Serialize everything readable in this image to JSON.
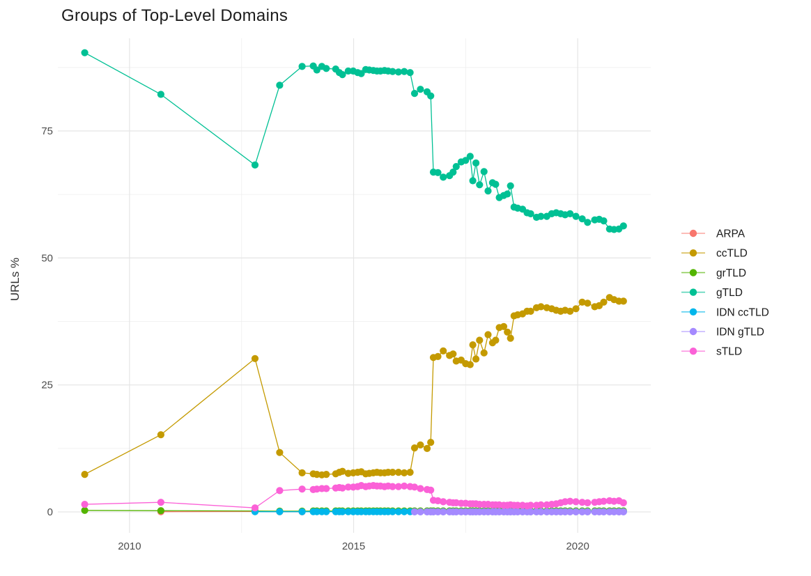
{
  "chart_data": {
    "type": "scatter-line",
    "title": "Groups of Top-Level Domains",
    "xlabel": "",
    "ylabel": "URLs %",
    "grid": "on",
    "legend_position": "right",
    "x_ticks": [
      2010,
      2015,
      2020
    ],
    "x_minor_ticks": [
      2012.5,
      2017.5
    ],
    "y_ticks": [
      0,
      25,
      50,
      75
    ],
    "y_minor_ticks": [
      12.5,
      37.5,
      62.5,
      87.5
    ],
    "xlim": [
      2008.4,
      2021.63
    ],
    "ylim": [
      -4.11,
      93.24
    ],
    "background_color": "#ffffff",
    "grid_color_major": "#e5e5e5",
    "grid_color_minor": "#f0f0f0",
    "x_full": [
      2009.0,
      2010.7,
      2012.8,
      2013.35,
      2013.85,
      2014.1,
      2014.18,
      2014.29,
      2014.39,
      2014.6,
      2014.68,
      2014.75,
      2014.88,
      2014.99,
      2015.09,
      2015.17,
      2015.27,
      2015.35,
      2015.44,
      2015.52,
      2015.6,
      2015.69,
      2015.77,
      2015.87,
      2016.0,
      2016.13,
      2016.26,
      2016.36,
      2016.49,
      2016.64,
      2016.72,
      2016.78,
      2016.88,
      2017.0,
      2017.14,
      2017.22,
      2017.29,
      2017.4,
      2017.5,
      2017.6,
      2017.66,
      2017.73,
      2017.81,
      2017.91,
      2018.0,
      2018.1,
      2018.17,
      2018.25,
      2018.35,
      2018.43,
      2018.5,
      2018.58,
      2018.66,
      2018.77,
      2018.87,
      2018.95,
      2019.08,
      2019.18,
      2019.31,
      2019.42,
      2019.52,
      2019.62,
      2019.72,
      2019.83,
      2019.96,
      2020.1,
      2020.22,
      2020.38,
      2020.48,
      2020.58,
      2020.71,
      2020.81,
      2020.92,
      2021.02
    ],
    "series": [
      {
        "name": "ARPA",
        "color": "#F8766D",
        "x_start": 1,
        "y": [
          0.05,
          0.08,
          0.05,
          0.03
        ]
      },
      {
        "name": "ccTLD",
        "color": "#C49A00",
        "x_start": 0,
        "y": [
          7.4,
          15.2,
          30.2,
          11.7,
          7.7,
          7.5,
          7.4,
          7.3,
          7.4,
          7.5,
          7.8,
          8.0,
          7.6,
          7.7,
          7.8,
          7.9,
          7.5,
          7.6,
          7.7,
          7.8,
          7.7,
          7.7,
          7.8,
          7.8,
          7.8,
          7.7,
          7.8,
          12.6,
          13.2,
          12.5,
          13.7,
          30.4,
          30.6,
          31.7,
          30.8,
          31.1,
          29.7,
          29.9,
          29.2,
          29.0,
          32.9,
          30.1,
          33.8,
          31.3,
          34.9,
          33.3,
          33.8,
          36.3,
          36.5,
          35.4,
          34.2,
          38.6,
          38.8,
          39.0,
          39.5,
          39.5,
          40.2,
          40.4,
          40.2,
          40.0,
          39.7,
          39.5,
          39.7,
          39.5,
          40.0,
          41.3,
          41.1,
          40.4,
          40.6,
          41.3,
          42.2,
          41.8,
          41.5,
          41.5
        ]
      },
      {
        "name": "grTLD",
        "color": "#53B400",
        "x_start": 0,
        "y": [
          0.3,
          0.25,
          0.2,
          0.15,
          0.15,
          0.2,
          0.2,
          0.2,
          0.2,
          0.2,
          0.2,
          0.2,
          0.2,
          0.2,
          0.2,
          0.2,
          0.2,
          0.2,
          0.2,
          0.2,
          0.2,
          0.2,
          0.2,
          0.2,
          0.2,
          0.2,
          0.2,
          0.2,
          0.2,
          0.2,
          0.2,
          0.2,
          0.2,
          0.2,
          0.2,
          0.2,
          0.2,
          0.2,
          0.2,
          0.2,
          0.2,
          0.2,
          0.2,
          0.2,
          0.2,
          0.2,
          0.2,
          0.2,
          0.2,
          0.2,
          0.2,
          0.2,
          0.2,
          0.2,
          0.2,
          0.2,
          0.2,
          0.2,
          0.2,
          0.2,
          0.2,
          0.2,
          0.2,
          0.2,
          0.2,
          0.2,
          0.2,
          0.2,
          0.2,
          0.2,
          0.2,
          0.2,
          0.2,
          0.2
        ]
      },
      {
        "name": "gTLD",
        "color": "#00C094",
        "x_start": 0,
        "y": [
          90.4,
          82.2,
          68.3,
          84.0,
          87.7,
          87.8,
          87.0,
          87.7,
          87.3,
          87.2,
          86.5,
          86.1,
          86.8,
          86.8,
          86.5,
          86.3,
          87.1,
          87.0,
          86.9,
          86.8,
          86.8,
          86.9,
          86.8,
          86.7,
          86.6,
          86.7,
          86.5,
          82.4,
          83.2,
          82.7,
          81.9,
          66.9,
          66.8,
          65.9,
          66.2,
          66.9,
          68.0,
          68.9,
          69.2,
          70.0,
          65.2,
          68.7,
          64.4,
          67.0,
          63.2,
          64.8,
          64.5,
          61.9,
          62.3,
          62.6,
          64.2,
          60.0,
          59.8,
          59.6,
          58.9,
          58.7,
          58.0,
          58.2,
          58.2,
          58.7,
          58.9,
          58.7,
          58.5,
          58.7,
          58.2,
          57.7,
          57.0,
          57.5,
          57.6,
          57.3,
          55.7,
          55.6,
          55.7,
          56.3
        ]
      },
      {
        "name": "IDN ccTLD",
        "color": "#00B6EB",
        "x_start": 2,
        "y": [
          0.05,
          0.05,
          0.05,
          0.05,
          0.05,
          0.05,
          0.05,
          0.05,
          0.05,
          0.05,
          0.05,
          0.05,
          0.05,
          0.05,
          0.05,
          0.05,
          0.05,
          0.05,
          0.05,
          0.05,
          0.05,
          0.05,
          0.05,
          0.05,
          0.05,
          0.05,
          0.05,
          0.05,
          0.05,
          0.05,
          0.05,
          0.05,
          0.05,
          0.05,
          0.05,
          0.05,
          0.05,
          0.05,
          0.05,
          0.05,
          0.05,
          0.05,
          0.05,
          0.05,
          0.05,
          0.05,
          0.05,
          0.05,
          0.05,
          0.05,
          0.05,
          0.05,
          0.05,
          0.05,
          0.05,
          0.05,
          0.05,
          0.05,
          0.05,
          0.05,
          0.05,
          0.05,
          0.05,
          0.05,
          0.05,
          0.05,
          0.05,
          0.05,
          0.05,
          0.05,
          0.05,
          0.05
        ]
      },
      {
        "name": "IDN gTLD",
        "color": "#A58AFF",
        "x_start": 27,
        "y": [
          0.02,
          0.02,
          0.02,
          0.02,
          0.02,
          0.02,
          0.02,
          0.02,
          0.02,
          0.02,
          0.02,
          0.02,
          0.02,
          0.02,
          0.02,
          0.02,
          0.02,
          0.02,
          0.02,
          0.02,
          0.02,
          0.02,
          0.02,
          0.02,
          0.02,
          0.02,
          0.02,
          0.02,
          0.02,
          0.02,
          0.02,
          0.02,
          0.02,
          0.02,
          0.02,
          0.02,
          0.02,
          0.02,
          0.02,
          0.02,
          0.02,
          0.02,
          0.02,
          0.02,
          0.02,
          0.02,
          0.02
        ]
      },
      {
        "name": "sTLD",
        "color": "#FB61D7",
        "x_start": 0,
        "y": [
          1.5,
          1.9,
          0.8,
          4.2,
          4.5,
          4.4,
          4.5,
          4.6,
          4.6,
          4.7,
          4.8,
          4.7,
          4.9,
          4.9,
          5.0,
          5.2,
          5.0,
          5.1,
          5.2,
          5.1,
          5.1,
          5.0,
          5.1,
          5.0,
          5.0,
          5.1,
          5.0,
          4.9,
          4.6,
          4.4,
          4.3,
          2.3,
          2.2,
          2.0,
          1.9,
          1.8,
          1.8,
          1.7,
          1.7,
          1.6,
          1.6,
          1.6,
          1.5,
          1.5,
          1.5,
          1.4,
          1.4,
          1.4,
          1.3,
          1.3,
          1.4,
          1.3,
          1.3,
          1.3,
          1.2,
          1.3,
          1.3,
          1.4,
          1.4,
          1.5,
          1.6,
          1.8,
          2.0,
          2.1,
          2.0,
          1.9,
          1.8,
          1.9,
          2.0,
          2.1,
          2.2,
          2.1,
          2.2,
          1.8
        ]
      }
    ]
  }
}
